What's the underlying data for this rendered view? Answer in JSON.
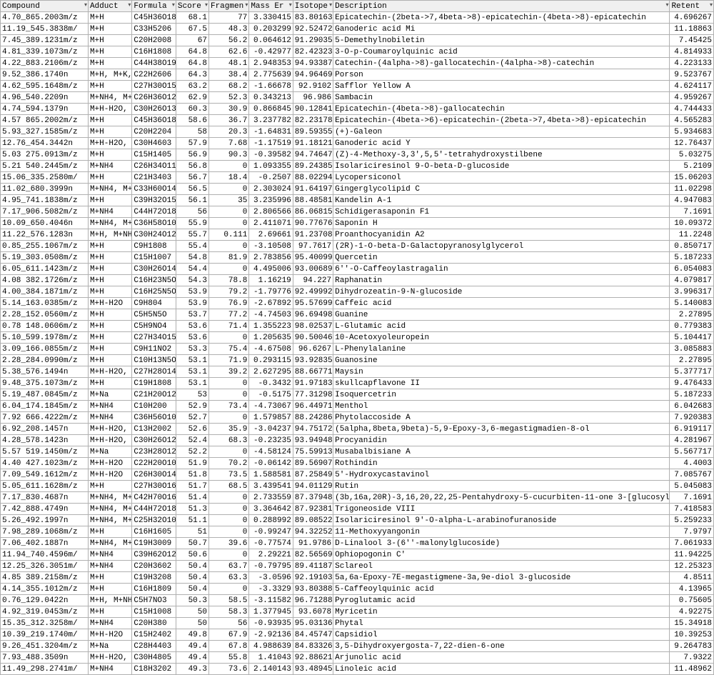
{
  "headers": [
    "Compound",
    "Adduct",
    "Formula",
    "Score",
    "Fragmen",
    "Mass Er",
    "Isotope",
    "Description",
    "Retent"
  ],
  "colClasses": [
    "",
    "",
    "",
    "num",
    "num",
    "num",
    "num",
    "",
    "num"
  ],
  "rows": [
    [
      "4.70_865.2003m/z",
      "M+H",
      "C45H36O18",
      "68.1",
      "77",
      "3.330415",
      "83.80163",
      "Epicatechin-(2beta->7,4beta->8)-epicatechin-(4beta->8)-epicatechin",
      "4.696267"
    ],
    [
      "11.19_545.3838m/",
      "M+H",
      "C33H5206",
      "67.5",
      "48.3",
      "0.203299",
      "92.52472",
      "Ganoderic acid Mi",
      "11.18863"
    ],
    [
      "7.45_389.1231m/z",
      "M+H",
      "C20H2008",
      "67",
      "56.2",
      "0.064612",
      "91.29035",
      "5-Demethylnobiletin",
      "7.45425"
    ],
    [
      "4.81_339.1073m/z",
      "M+H",
      "C16H1808",
      "64.8",
      "62.6",
      "-0.42977",
      "82.42323",
      "3-O-p-Coumaroylquinic acid",
      "4.814933"
    ],
    [
      "4.22_883.2106m/z",
      "M+H",
      "C44H38O19",
      "64.8",
      "48.1",
      "2.948353",
      "94.93387",
      "Catechin-(4alpha->8)-gallocatechin-(4alpha->8)-catechin",
      "4.223133"
    ],
    [
      "9.52_386.1740n",
      "M+H, M+K,",
      "C22H2606",
      "64.3",
      "38.4",
      "2.775639",
      "94.96469",
      "Porson",
      "9.523767"
    ],
    [
      "4.62_595.1648m/z",
      "M+H",
      "C27H30O15",
      "63.2",
      "68.2",
      "-1.66678",
      "92.9102",
      "Safflor Yellow A",
      "4.624117"
    ],
    [
      "4.96_540.2209n",
      "M+NH4, M+",
      "C26H36O12",
      "62.9",
      "52.3",
      "0.343213",
      "96.986",
      "Sambacin",
      "4.959267"
    ],
    [
      "4.74_594.1379n",
      "M+H-H2O,",
      "C30H26O13",
      "60.3",
      "30.9",
      "0.866845",
      "90.12841",
      "Epicatechin-(4beta->8)-gallocatechin",
      "4.744433"
    ],
    [
      "4.57 865.2002m/z",
      "M+H",
      "C45H36O18",
      "58.6",
      "36.7",
      "3.237782",
      "82.23178",
      "Epicatechin-(4beta->6)-epicatechin-(2beta->7,4beta->8)-epicatechin",
      "4.565283"
    ],
    [
      "5.93_327.1585m/z",
      "M+H",
      "C20H2204",
      "58",
      "20.3",
      "-1.64831",
      "89.59355",
      "(+)-Galeon",
      "5.934683"
    ],
    [
      "12.76_454.3442n",
      "M+H-H2O,",
      "C30H4603",
      "57.9",
      "7.68",
      "-1.17519",
      "91.18121",
      "Ganoderic acid Y",
      "12.76437"
    ],
    [
      "5.03 275.0913m/z",
      "M+H",
      "C15H1405",
      "56.9",
      "90.3",
      "-0.39582",
      "94.74647",
      "(Z)-4-Methoxy-3,3',5,5'-tetrahydroxystilbene",
      "5.03275"
    ],
    [
      "5.21 540.2445m/z",
      "M+NH4",
      "C26H34O11",
      "56.8",
      "0",
      "1.093355",
      "89.24385",
      "Isolariciresinol 9-O-beta-D-glucoside",
      "5.2109"
    ],
    [
      "15.06_335.2580m/",
      "M+H",
      "C21H3403",
      "56.7",
      "18.4",
      "-0.2507",
      "88.02294",
      "Lycopersiconol",
      "15.06203"
    ],
    [
      "11.02_680.3999n",
      "M+NH4, M+",
      "C33H60O14",
      "56.5",
      "0",
      "2.303024",
      "91.64197",
      "Gingerglycolipid C",
      "11.02298"
    ],
    [
      "4.95_741.1838m/z",
      "M+H",
      "C39H32O15",
      "56.1",
      "35",
      "3.235996",
      "88.48581",
      "Kandelin A-1",
      "4.947083"
    ],
    [
      "7.17_906.5082m/z",
      "M+NH4",
      "C44H72O18",
      "56",
      "0",
      "2.806566",
      "86.06815",
      "Schidigerasaponin F1",
      "7.1691"
    ],
    [
      "10.09_650.4046n",
      "M+NH4, M+",
      "C36H58O10",
      "55.9",
      "0",
      "2.411071",
      "90.77676",
      "Saponin H",
      "10.09372"
    ],
    [
      "11.22_576.1283n",
      "M+H, M+NH",
      "C30H24O12",
      "55.7",
      "0.111",
      "2.69661",
      "91.23708",
      "Proanthocyanidin A2",
      "11.2248"
    ],
    [
      "0.85_255.1067m/z",
      "M+H",
      "C9H1808",
      "55.4",
      "0",
      "-3.10508",
      "97.7617",
      "(2R)-1-O-beta-D-Galactopyranosylglycerol",
      "0.850717"
    ],
    [
      "5.19_303.0508m/z",
      "M+H",
      "C15H1007",
      "54.8",
      "81.9",
      "2.783856",
      "95.40099",
      "Quercetin",
      "5.187233"
    ],
    [
      "6.05_611.1423m/z",
      "M+H",
      "C30H26O14",
      "54.4",
      "0",
      "4.495006",
      "93.00689",
      "6''-O-Caffeoylastragalin",
      "6.054083"
    ],
    [
      "4.08 382.1726m/z",
      "M+H",
      "C16H23N5O",
      "54.3",
      "78.8",
      "1.16219",
      "94.227",
      "Raphanatin",
      "4.079817"
    ],
    [
      "4.00_384.1871m/z",
      "M+H",
      "C16H25N5O",
      "53.9",
      "79.2",
      "-1.79776",
      "92.49992",
      "Dihydrozeatin-9-N-glucoside",
      "3.996317"
    ],
    [
      "5.14_163.0385m/z",
      "M+H-H2O",
      "C9H804",
      "53.9",
      "76.9",
      "-2.67892",
      "95.57699",
      "Caffeic acid",
      "5.140083"
    ],
    [
      "2.28_152.0560m/z",
      "M+H",
      "C5H5N5O",
      "53.7",
      "77.2",
      "-4.74503",
      "96.69498",
      "Guanine",
      "2.27895"
    ],
    [
      "0.78 148.0606m/z",
      "M+H",
      "C5H9NO4",
      "53.6",
      "71.4",
      "1.355223",
      "98.02537",
      "L-Glutamic acid",
      "0.779383"
    ],
    [
      "5.10_599.1978m/z",
      "M+H",
      "C27H34O15",
      "53.6",
      "0",
      "1.205635",
      "90.50046",
      "10-Acetoxyoleuropein",
      "5.104417"
    ],
    [
      "3.09_166.0855m/z",
      "M+H",
      "C9H11NO2",
      "53.3",
      "75.4",
      "-4.67508",
      "96.6267",
      "L-Phenylalanine",
      "3.085883"
    ],
    [
      "2.28_284.0990m/z",
      "M+H",
      "C10H13N5O",
      "53.1",
      "71.9",
      "0.293115",
      "93.92835",
      "Guanosine",
      "2.27895"
    ],
    [
      "5.38_576.1494n",
      "M+H-H2O,",
      "C27H28O14",
      "53.1",
      "39.2",
      "2.627295",
      "88.66771",
      "Maysin",
      "5.377717"
    ],
    [
      "9.48_375.1073m/z",
      "M+H",
      "C19H1808",
      "53.1",
      "0",
      "-0.3432",
      "91.97183",
      "skullcapflavone II",
      "9.476433"
    ],
    [
      "5.19_487.0845m/z",
      "M+Na",
      "C21H20O12",
      "53",
      "0",
      "-0.5175",
      "77.31298",
      "Isoquercetrin",
      "5.187233"
    ],
    [
      "6.04_174.1845m/z",
      "M+NH4",
      "C10H200",
      "52.9",
      "73.4",
      "-4.73067",
      "96.44971",
      "Menthol",
      "6.042683"
    ],
    [
      "7.92 666.4222m/z",
      "M+NH4",
      "C36H56O10",
      "52.7",
      "0",
      "1.579857",
      "88.24286",
      "Phytolaccoside A",
      "7.920383"
    ],
    [
      "6.92_208.1457n",
      "M+H-H2O,",
      "C13H2002",
      "52.6",
      "35.9",
      "-3.04237",
      "94.75172",
      "(5alpha,8beta,9beta)-5,9-Epoxy-3,6-megastigmadien-8-ol",
      "6.919117"
    ],
    [
      "4.28_578.1423n",
      "M+H-H2O,",
      "C30H26O12",
      "52.4",
      "68.3",
      "-0.23235",
      "93.94948",
      "Procyanidin",
      "4.281967"
    ],
    [
      "5.57 519.1450m/z",
      "M+Na",
      "C23H28O12",
      "52.2",
      "0",
      "-4.58124",
      "75.59913",
      "Musabalbisiane A",
      "5.567717"
    ],
    [
      "4.40 427.1023m/z",
      "M+H-H2O",
      "C22H20O10",
      "51.9",
      "70.2",
      "-0.06142",
      "89.56907",
      "Rothindin",
      "4.4003"
    ],
    [
      "7.09_549.1612m/z",
      "M+H-H2O",
      "C26H30O14",
      "51.8",
      "73.5",
      "1.588581",
      "87.25849",
      "5'-Hydroxycastavinol",
      "7.085767"
    ],
    [
      "5.05_611.1628m/z",
      "M+H",
      "C27H30O16",
      "51.7",
      "68.5",
      "3.439541",
      "94.01129",
      "Rutin",
      "5.045083"
    ],
    [
      "7.17_830.4687n",
      "M+NH4, M+",
      "C42H70O16",
      "51.4",
      "0",
      "2.733559",
      "87.37948",
      "(3b,16a,20R)-3,16,20,22,25-Pentahydroxy-5-cucurbiten-11-one 3-[glucosyl-(1->6)-g",
      "7.1691"
    ],
    [
      "7.42_888.4749n",
      "M+NH4, M+",
      "C44H72O18",
      "51.3",
      "0",
      "3.364642",
      "87.92381",
      "Trigoneoside VIII",
      "7.418583"
    ],
    [
      "5.26_492.1997n",
      "M+NH4, M+",
      "C25H32O10",
      "51.1",
      "0",
      "0.288992",
      "89.08522",
      "Isolariciresinol 9'-O-alpha-L-arabinofuranoside",
      "5.259233"
    ],
    [
      "7.98_289.1068m/z",
      "M+H",
      "C16H1605",
      "51",
      "0",
      "-0.99247",
      "94.32252",
      "11-Methoxyyangonin",
      "7.9797"
    ],
    [
      "7.06_402.1887n",
      "M+NH4, M+",
      "C19H3009",
      "50.7",
      "39.6",
      "-0.77574",
      "91.9786",
      "D-Linalool 3-(6''-malonylglucoside)",
      "7.061933"
    ],
    [
      "11.94_740.4596m/",
      "M+NH4",
      "C39H62O12",
      "50.6",
      "0",
      "2.29221",
      "82.56569",
      "Ophiopogonin C'",
      "11.94225"
    ],
    [
      "12.25_326.3051m/",
      "M+NH4",
      "C20H3602",
      "50.4",
      "63.7",
      "-0.79795",
      "89.41187",
      "Sclareol",
      "12.25323"
    ],
    [
      "4.85 389.2158m/z",
      "M+H",
      "C19H3208",
      "50.4",
      "63.3",
      "-3.0596",
      "92.19103",
      "5a,6a-Epoxy-7E-megastigmene-3a,9e-diol 3-glucoside",
      "4.8511"
    ],
    [
      "4.14_355.1012m/z",
      "M+H",
      "C16H1809",
      "50.4",
      "0",
      "-3.3329",
      "93.80388",
      "5-Caffeoylquinic acid",
      "4.13965"
    ],
    [
      "0.76_129.0422n",
      "M+H, M+NH",
      "C5H7NO3",
      "50.3",
      "58.5",
      "-3.11582",
      "96.71288",
      "Pyroglutamic acid",
      "0.75605"
    ],
    [
      "4.92_319.0453m/z",
      "M+H",
      "C15H1008",
      "50",
      "58.3",
      "1.377945",
      "93.6078",
      "Myricetin",
      "4.92275"
    ],
    [
      "15.35_312.3258m/",
      "M+NH4",
      "C20H380",
      "50",
      "56",
      "-0.93935",
      "95.03136",
      "Phytal",
      "15.34918"
    ],
    [
      "10.39_219.1740m/",
      "M+H-H2O",
      "C15H2402",
      "49.8",
      "67.9",
      "-2.92136",
      "84.45747",
      "Capsidiol",
      "10.39253"
    ],
    [
      "9.26_451.3204m/z",
      "M+Na",
      "C28H4403",
      "49.4",
      "67.8",
      "4.988639",
      "84.83326",
      "3,5-Dihydroxyergosta-7,22-dien-6-one",
      "9.264783"
    ],
    [
      "7.93_488.3509n",
      "M+H-H2O,",
      "C30H4805",
      "49.4",
      "55.8",
      "1.41043",
      "92.88621",
      "Arjunolic acid",
      "7.9322"
    ],
    [
      "11.49_298.2741m/",
      "M+NH4",
      "C18H3202",
      "49.3",
      "73.6",
      "2.140143",
      "93.48945",
      "Linoleic acid",
      "11.48962"
    ]
  ]
}
